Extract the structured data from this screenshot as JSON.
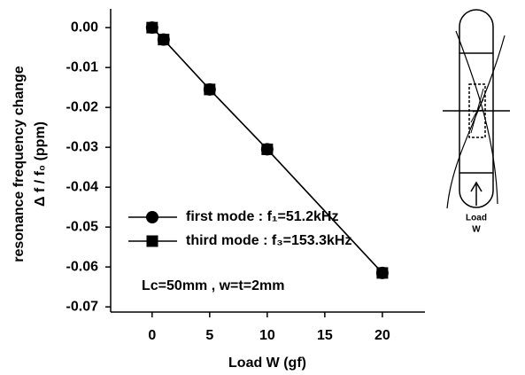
{
  "chart_data": {
    "type": "line",
    "y_label": [
      "resonance frequency change",
      "Δ f / f₀ (ppm)"
    ],
    "x_label": "Load  W  (gf)",
    "annotation": "Lc=50mm , w=t=2mm",
    "inset_labels": [
      "Load",
      "W"
    ],
    "x": [
      0,
      1,
      5,
      10,
      20
    ],
    "series": [
      {
        "name": "first mode : f₁=51.2kHz",
        "color": "#000000",
        "marker": "circle",
        "values": [
          0,
          -0.003,
          -0.0155,
          -0.0305,
          -0.0615
        ]
      },
      {
        "name": "third mode : f₃=153.3kHz",
        "color": "#000000",
        "marker": "square",
        "values": [
          0,
          -0.003,
          -0.0155,
          -0.0305,
          -0.0615
        ]
      }
    ],
    "xlim": [
      -3.6,
      23.7
    ],
    "xticks": [
      0,
      5,
      10,
      15,
      20
    ],
    "ylim": [
      -0.0713,
      0.0047
    ],
    "yticks": [
      {
        "value": 0,
        "label": "0.00"
      },
      -0.01,
      -0.02,
      -0.03,
      -0.04,
      -0.05,
      -0.06,
      -0.07
    ]
  }
}
